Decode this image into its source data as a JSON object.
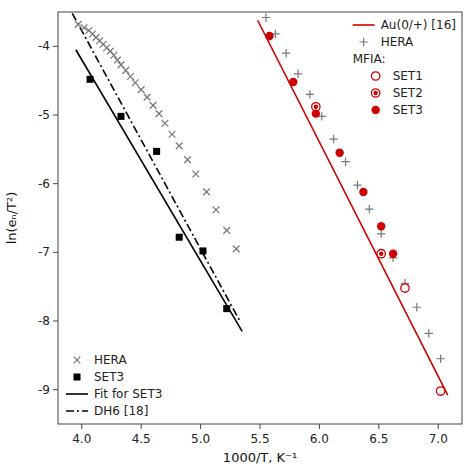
{
  "chart_data": {
    "type": "scatter",
    "xlabel": "1000/T, K⁻¹",
    "ylabel": "ln(eₙ/T²)",
    "xlim": [
      3.8,
      7.2
    ],
    "ylim": [
      -9.5,
      -3.5
    ],
    "xticks": [
      {
        "value": 4.0,
        "label": "4.0"
      },
      4.5,
      {
        "value": 5.0,
        "label": "5.0"
      },
      5.5,
      {
        "value": 6.0,
        "label": "6.0"
      },
      6.5,
      {
        "value": 7.0,
        "label": "7.0"
      }
    ],
    "yticks": [
      -9,
      -8,
      -7,
      -6,
      -5,
      -4
    ],
    "grid": false,
    "series": [
      {
        "name": "Au(0/+) [16]",
        "type": "line",
        "line_style": "solid",
        "color": "#cc0000",
        "legend": "upper right",
        "x": [
          5.48,
          7.08
        ],
        "values": [
          -3.62,
          -9.08
        ]
      },
      {
        "name": "HERA",
        "type": "scatter",
        "marker": "plus",
        "color": "#777777",
        "legend": "upper right",
        "x": [
          5.55,
          5.63,
          5.72,
          5.82,
          5.92,
          6.02,
          6.12,
          6.22,
          6.32,
          6.42,
          6.52,
          6.62,
          6.72,
          6.82,
          6.92,
          7.02
        ],
        "values": [
          -3.58,
          -3.82,
          -4.1,
          -4.4,
          -4.7,
          -5.02,
          -5.35,
          -5.68,
          -6.02,
          -6.37,
          -6.73,
          -7.08,
          -7.45,
          -7.8,
          -8.18,
          -8.55
        ]
      },
      {
        "name": "SET1",
        "group": "MFIA:",
        "type": "scatter",
        "marker": "circle-open",
        "color": "#cc0000",
        "legend": "upper right",
        "x": [
          6.72,
          7.02
        ],
        "values": [
          -7.52,
          -9.02
        ]
      },
      {
        "name": "SET2",
        "group": "MFIA:",
        "type": "scatter",
        "marker": "circle-dot",
        "color": "#cc0000",
        "legend": "upper right",
        "x": [
          5.97,
          6.52
        ],
        "values": [
          -4.88,
          -7.02
        ]
      },
      {
        "name": "SET3",
        "group": "MFIA:",
        "type": "scatter",
        "marker": "circle",
        "color": "#cc0000",
        "legend": "upper right",
        "x": [
          5.58,
          5.78,
          5.97,
          6.17,
          6.37,
          6.52,
          6.62
        ],
        "values": [
          -3.85,
          -4.52,
          -4.98,
          -5.55,
          -6.12,
          -6.62,
          -7.02
        ]
      },
      {
        "name": "HERA",
        "type": "scatter",
        "marker": "x",
        "color": "#777777",
        "legend": "lower left",
        "x": [
          3.97,
          4.02,
          4.06,
          4.09,
          4.12,
          4.15,
          4.18,
          4.21,
          4.24,
          4.27,
          4.3,
          4.33,
          4.37,
          4.41,
          4.45,
          4.5,
          4.55,
          4.6,
          4.65,
          4.7,
          4.76,
          4.82,
          4.89,
          4.96,
          5.05,
          5.13,
          5.22,
          5.3
        ],
        "values": [
          -3.68,
          -3.73,
          -3.77,
          -3.82,
          -3.87,
          -3.92,
          -3.97,
          -4.02,
          -4.07,
          -4.13,
          -4.2,
          -4.27,
          -4.35,
          -4.44,
          -4.53,
          -4.63,
          -4.74,
          -4.86,
          -4.98,
          -5.12,
          -5.28,
          -5.45,
          -5.65,
          -5.86,
          -6.12,
          -6.38,
          -6.68,
          -6.95
        ]
      },
      {
        "name": "SET3",
        "type": "scatter",
        "marker": "square",
        "color": "#000000",
        "legend": "lower left",
        "x": [
          4.07,
          4.33,
          4.63,
          4.82,
          5.02,
          5.22
        ],
        "values": [
          -4.48,
          -5.02,
          -5.53,
          -6.78,
          -6.98,
          -7.82
        ]
      },
      {
        "name": "Fit for SET3",
        "type": "line",
        "line_style": "solid",
        "color": "#000000",
        "legend": "lower left",
        "x": [
          3.95,
          5.35
        ],
        "values": [
          -4.05,
          -8.15
        ]
      },
      {
        "name": "DH6 [18]",
        "type": "line",
        "line_style": "dashdot",
        "color": "#000000",
        "legend": "lower left",
        "x": [
          3.92,
          5.33
        ],
        "values": [
          -3.52,
          -8.0
        ]
      }
    ]
  }
}
